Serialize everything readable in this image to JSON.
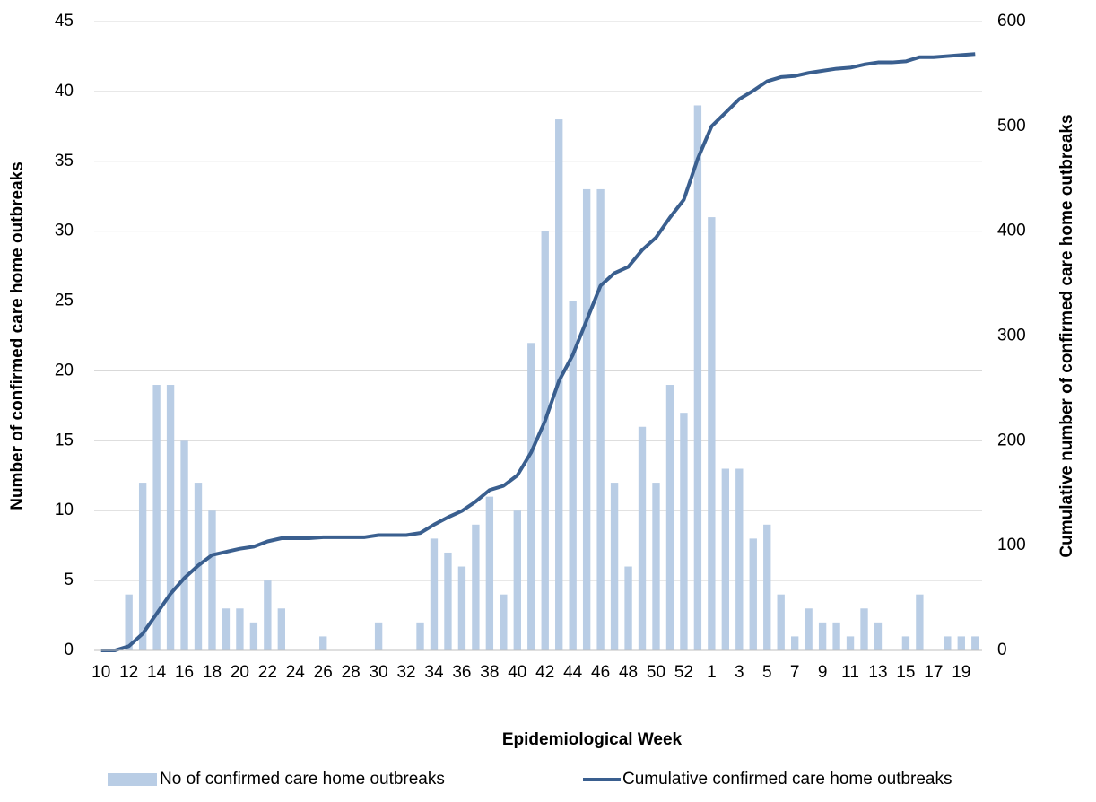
{
  "chart_data": {
    "type": "bar-line",
    "x_label": "Epidemiological Week",
    "y_label": "Number of confirmed care home outbreaks",
    "y2_label": "Cumulative number of confirmed care home outbreaks",
    "categories": [
      "10",
      null,
      "12",
      null,
      "14",
      null,
      "16",
      null,
      "18",
      null,
      "20",
      null,
      "22",
      null,
      "24",
      null,
      "26",
      null,
      "28",
      null,
      "30",
      null,
      "32",
      null,
      "34",
      null,
      "36",
      null,
      "38",
      null,
      "40",
      null,
      "42",
      null,
      "44",
      null,
      "46",
      null,
      "48",
      null,
      "50",
      null,
      "52",
      null,
      "1",
      null,
      "3",
      null,
      "5",
      null,
      "7",
      null,
      "9",
      null,
      "11",
      null,
      "13",
      null,
      "15",
      null,
      "17",
      null,
      "19",
      null
    ],
    "series": [
      {
        "name": "No of confirmed care home outbreaks",
        "type": "bar",
        "color": "#b9cde5",
        "values": [
          0,
          0,
          4,
          12,
          19,
          19,
          15,
          12,
          10,
          3,
          3,
          2,
          5,
          3,
          0,
          0,
          1,
          0,
          0,
          0,
          2,
          0,
          0,
          2,
          8,
          7,
          6,
          9,
          11,
          4,
          10,
          22,
          30,
          38,
          25,
          33,
          33,
          12,
          6,
          16,
          12,
          19,
          17,
          39,
          31,
          13,
          13,
          8,
          9,
          4,
          1,
          3,
          2,
          2,
          1,
          3,
          2,
          0,
          1,
          4,
          0,
          1,
          1,
          1
        ]
      },
      {
        "name": "Cumulative confirmed care home outbreaks",
        "type": "line",
        "axis": "y2",
        "color": "#3a5f8f",
        "values": [
          0,
          0,
          4,
          16,
          35,
          54,
          69,
          81,
          91,
          94,
          97,
          99,
          104,
          107,
          107,
          107,
          108,
          108,
          108,
          108,
          110,
          110,
          110,
          112,
          120,
          127,
          133,
          142,
          153,
          157,
          167,
          189,
          219,
          257,
          282,
          315,
          348,
          360,
          366,
          382,
          394,
          413,
          430,
          469,
          500,
          513,
          526,
          534,
          543,
          547,
          548,
          551,
          553,
          555,
          556,
          559,
          561,
          561,
          562,
          566,
          566,
          567,
          568,
          569
        ]
      }
    ],
    "ylim": [
      0,
      45
    ],
    "yticks": [
      0,
      5,
      10,
      15,
      20,
      25,
      30,
      35,
      40,
      45
    ],
    "y2lim": [
      0,
      600
    ],
    "y2ticks": [
      0,
      100,
      200,
      300,
      400,
      500,
      600
    ],
    "grid": true,
    "legend": "bottom"
  }
}
